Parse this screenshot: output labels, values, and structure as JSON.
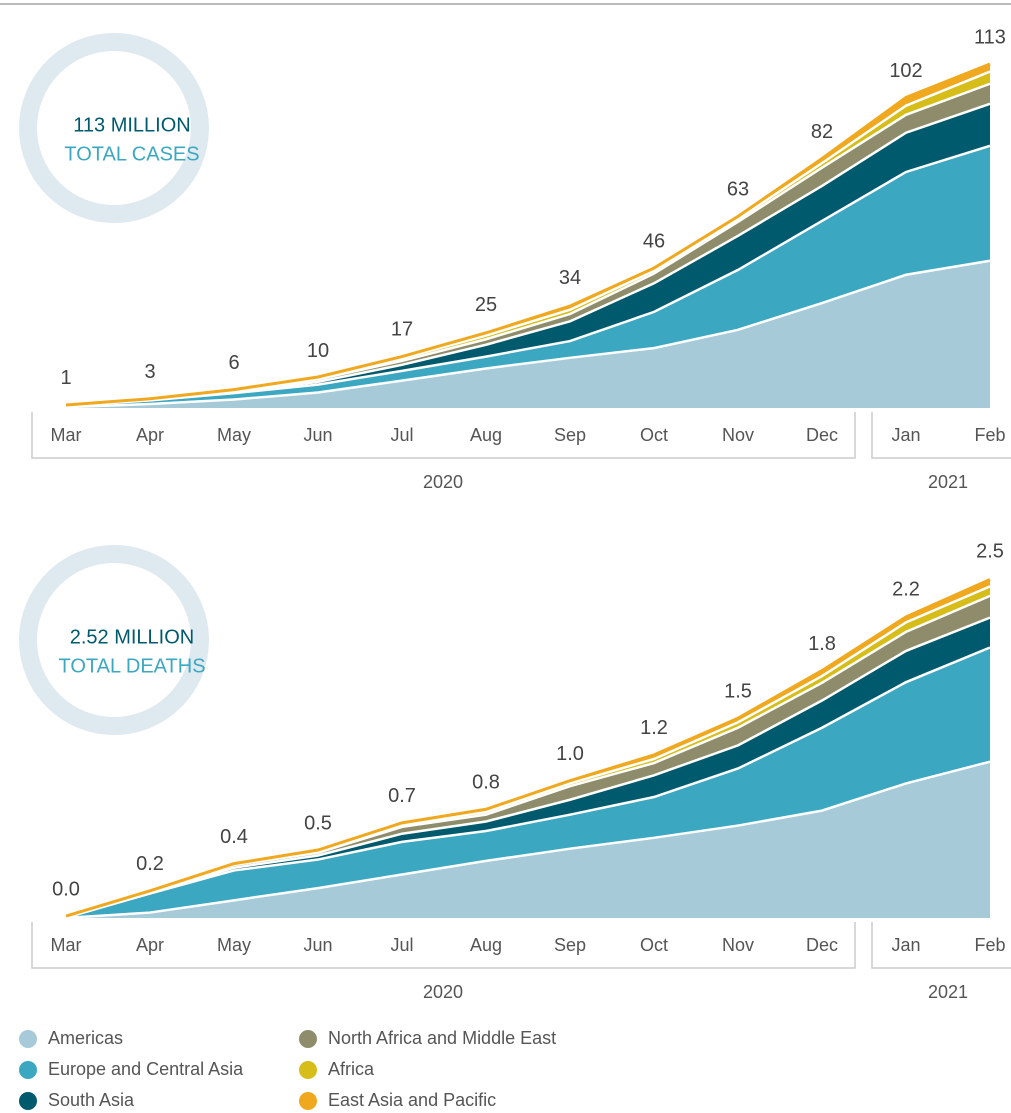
{
  "chart_data": [
    {
      "type": "stacked-area",
      "badge": [
        "113 MILLION",
        "TOTAL CASES"
      ],
      "categories": [
        "Mar",
        "Apr",
        "May",
        "Jun",
        "Jul",
        "Aug",
        "Sep",
        "Oct",
        "Nov",
        "Dec",
        "Jan",
        "Feb"
      ],
      "x_groups": [
        "2020",
        "2021"
      ],
      "ylim": [
        0,
        120
      ],
      "totals": [
        1,
        3,
        6,
        10,
        17,
        25,
        34,
        46,
        63,
        82,
        102,
        113
      ],
      "series": [
        {
          "name": "Americas",
          "color": "#a6cad8",
          "values": [
            0.3,
            1.3,
            2.8,
            5.1,
            9.0,
            13.0,
            16.5,
            19.7,
            25.7,
            34.5,
            43.8,
            48.4
          ]
        },
        {
          "name": "Europe and Central Asia",
          "color": "#3ba7c0",
          "values": [
            0.4,
            1.2,
            2.1,
            2.6,
            3.2,
            3.9,
            5.5,
            11.9,
            19.7,
            27.0,
            33.8,
            37.8
          ]
        },
        {
          "name": "South Asia",
          "color": "#005a6e",
          "values": [
            0.05,
            0.1,
            0.3,
            0.9,
            2.0,
            3.9,
            6.5,
            9.4,
            11.2,
            11.5,
            12.9,
            13.8
          ]
        },
        {
          "name": "North Africa and Middle East",
          "color": "#8e8c6a",
          "values": [
            0.1,
            0.2,
            0.4,
            0.8,
            1.3,
            1.8,
            2.4,
            3.2,
            4.6,
            6.0,
            5.9,
            6.6
          ]
        },
        {
          "name": "Africa",
          "color": "#d6bd1a",
          "values": [
            0.02,
            0.05,
            0.15,
            0.4,
            0.8,
            1.2,
            1.4,
            0.9,
            0.9,
            1.5,
            3.0,
            4.0
          ]
        },
        {
          "name": "East Asia and Pacific",
          "color": "#f0a81e",
          "values": [
            0.1,
            0.2,
            0.3,
            0.4,
            0.6,
            0.9,
            1.2,
            0.9,
            0.9,
            1.5,
            2.7,
            2.5
          ]
        }
      ]
    },
    {
      "type": "stacked-area",
      "badge": [
        "2.52 MILLION",
        "TOTAL DEATHS"
      ],
      "categories": [
        "Mar",
        "Apr",
        "May",
        "Jun",
        "Jul",
        "Aug",
        "Sep",
        "Oct",
        "Nov",
        "Dec",
        "Jan",
        "Feb"
      ],
      "x_groups": [
        "2020",
        "2021"
      ],
      "ylim": [
        0,
        2.7
      ],
      "totals": [
        0.014,
        0.2,
        0.4,
        0.5,
        0.7,
        0.8,
        1.01,
        1.2,
        1.47,
        1.82,
        2.22,
        2.5
      ],
      "value_labels": [
        "0.0",
        "0.2",
        "0.4",
        "0.5",
        "0.7",
        "0.8",
        "1.0",
        "1.2",
        "1.5",
        "1.8",
        "2.2",
        "2.5"
      ],
      "series": [
        {
          "name": "Americas",
          "color": "#a6cad8",
          "values": [
            0.001,
            0.04,
            0.13,
            0.22,
            0.32,
            0.42,
            0.51,
            0.59,
            0.68,
            0.79,
            0.99,
            1.15
          ]
        },
        {
          "name": "Europe and Central Asia",
          "color": "#3ba7c0",
          "values": [
            0.002,
            0.14,
            0.22,
            0.21,
            0.24,
            0.22,
            0.25,
            0.3,
            0.42,
            0.61,
            0.745,
            0.84
          ]
        },
        {
          "name": "South Asia",
          "color": "#005a6e",
          "values": [
            0,
            0.005,
            0.02,
            0.03,
            0.06,
            0.07,
            0.11,
            0.16,
            0.17,
            0.2,
            0.23,
            0.22
          ]
        },
        {
          "name": "North Africa and Middle East",
          "color": "#8e8c6a",
          "values": [
            0.001,
            0.01,
            0.02,
            0.02,
            0.05,
            0.05,
            0.1,
            0.09,
            0.13,
            0.13,
            0.14,
            0.16
          ]
        },
        {
          "name": "Africa",
          "color": "#d6bd1a",
          "values": [
            0,
            0.002,
            0.005,
            0.01,
            0.015,
            0.02,
            0.02,
            0.03,
            0.04,
            0.05,
            0.07,
            0.07
          ]
        },
        {
          "name": "East Asia and Pacific",
          "color": "#f0a81e",
          "values": [
            0.01,
            0.003,
            0.005,
            0.01,
            0.015,
            0.02,
            0.02,
            0.03,
            0.03,
            0.04,
            0.04,
            0.05
          ]
        }
      ]
    }
  ]
}
